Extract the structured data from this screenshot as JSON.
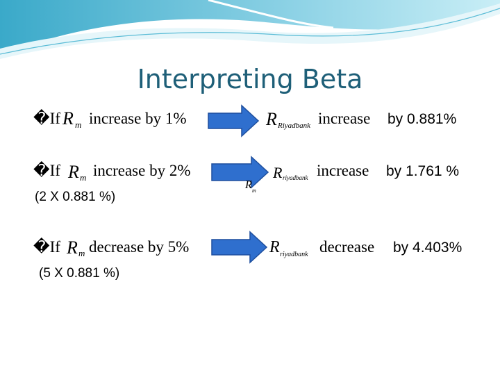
{
  "title": "Interpreting Beta",
  "rows": [
    {
      "bullet": "�If",
      "market": {
        "symbol": "R",
        "subscript": "m"
      },
      "verb": "increase by 1%",
      "stock": {
        "symbol": "R",
        "subscript": "Riyadbank"
      },
      "result_verb": "increase",
      "result_amount": "by 0.881%"
    },
    {
      "bullet": "�If",
      "market": {
        "symbol": "R",
        "subscript": "m"
      },
      "verb": "increase by 2%",
      "note": "(2 X 0.881 %)",
      "stock": {
        "symbol": "R",
        "subscript": "riyadbank"
      },
      "extra": {
        "symbol": "R",
        "subscript": "m"
      },
      "result_verb": "increase",
      "result_amount": "by 1.761 %"
    },
    {
      "bullet": "�If",
      "market": {
        "symbol": "R",
        "subscript": "m"
      },
      "verb": "decrease by 5%",
      "note": "(5 X 0.881 %)",
      "stock": {
        "symbol": "R",
        "subscript": "riyadbank"
      },
      "result_verb": "decrease",
      "result_amount": "by 4.403%"
    }
  ]
}
